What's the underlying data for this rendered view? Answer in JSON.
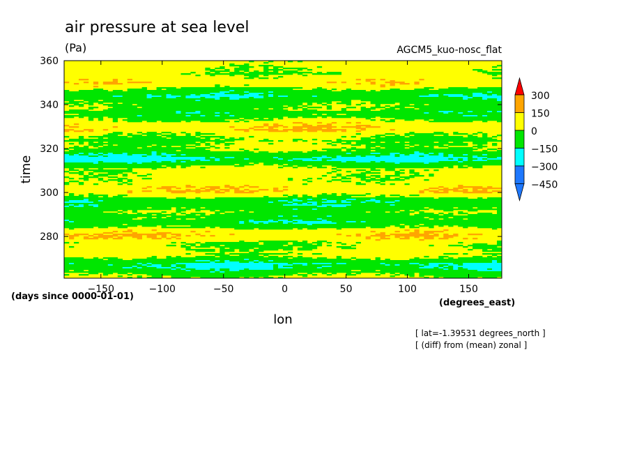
{
  "chart_data": {
    "type": "heatmap",
    "title": "air pressure at sea level",
    "units": "(Pa)",
    "model": "AGCM5_kuo-nosc_flat",
    "xlabel": "lon",
    "ylabel": "time",
    "x_units": "(degrees_east)",
    "y_units": "(days since 0000-01-01)",
    "note_lines": [
      "[ lat=-1.39531 degrees_north ]",
      "[ (diff) from (mean) zonal ]"
    ],
    "xlim": [
      -180,
      177
    ],
    "ylim": [
      261,
      360
    ],
    "x_ticks": [
      -150,
      -100,
      -50,
      0,
      50,
      100,
      150
    ],
    "y_ticks": [
      280,
      300,
      320,
      340,
      360
    ],
    "x_tick_labels": [
      "-150",
      "-100",
      "-50",
      "0",
      "50",
      "100",
      "150"
    ],
    "y_tick_labels": [
      "280",
      "300",
      "320",
      "340",
      "360"
    ],
    "colorbar": {
      "levels": [
        -450,
        -300,
        -150,
        0,
        150,
        300
      ],
      "labels": [
        "-450",
        "-300",
        "-150",
        "0",
        "150",
        "300"
      ],
      "colors": [
        "#1e78ff",
        "#00ffff",
        "#00e600",
        "#ffff00",
        "#ffa500",
        "#ff0000"
      ]
    },
    "grid": false,
    "field_description": "zonally-anomalous sea level pressure, alternating bands of mostly 0..150 (yellow) and -150..0 (green), sparse -300..-150 (cyan) and 150..300 (orange) patches"
  }
}
